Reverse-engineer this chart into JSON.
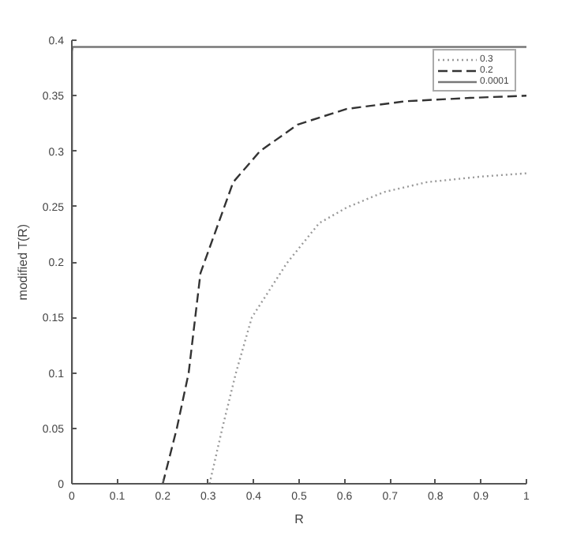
{
  "chart_data": {
    "type": "line",
    "xlabel": "R",
    "ylabel": "modified T(R)",
    "xlim": [
      0,
      1
    ],
    "ylim": [
      0,
      0.4
    ],
    "xticks": [
      0,
      0.1,
      0.2,
      0.3,
      0.4,
      0.5,
      0.6,
      0.7,
      0.8,
      0.9,
      1
    ],
    "yticks": [
      0,
      0.05,
      0.1,
      0.15,
      0.2,
      0.25,
      0.3,
      0.35,
      0.4
    ],
    "grid": false,
    "legend": "top right",
    "marker": "none",
    "series": [
      {
        "name": "0.3",
        "color": "#999999",
        "line_style": "dotted",
        "x": [
          0.303,
          0.331,
          0.361,
          0.396,
          0.473,
          0.544,
          0.604,
          0.686,
          0.781,
          0.899,
          1.0
        ],
        "values": [
          0,
          0.05,
          0.1,
          0.15,
          0.199,
          0.235,
          0.249,
          0.263,
          0.272,
          0.277,
          0.28
        ]
      },
      {
        "name": "0.2",
        "color": "#333333",
        "line_style": "dashed",
        "x": [
          0.2,
          0.231,
          0.257,
          0.283,
          0.355,
          0.414,
          0.497,
          0.604,
          0.734,
          0.876,
          1.0
        ],
        "values": [
          0,
          0.05,
          0.1,
          0.19,
          0.272,
          0.3,
          0.324,
          0.338,
          0.345,
          0.348,
          0.35
        ]
      },
      {
        "name": "0.0001",
        "color": "#777777",
        "line_style": "solid",
        "x": [
          0.0001,
          0.0005,
          0.002,
          1.0
        ],
        "values": [
          0,
          0.39,
          0.394,
          0.394
        ]
      }
    ]
  }
}
